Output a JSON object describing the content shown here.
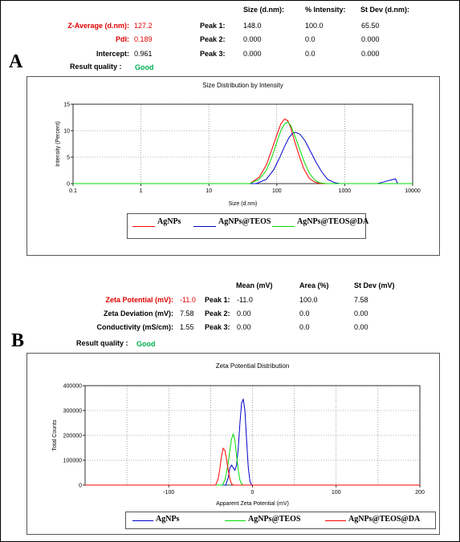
{
  "panels": {
    "a": "A",
    "b": "B"
  },
  "sizeSummary": {
    "headers": {
      "size": "Size (d.nm):",
      "intensity": "% Intensity:",
      "stdev": "St Dev (d.nm):"
    },
    "zavg_label": "Z-Average (d.nm):",
    "zavg_value": "127.2",
    "pdi_label": "PdI:",
    "pdi_value": "0.189",
    "intercept_label": "Intercept:",
    "intercept_value": "0.961",
    "quality_label": "Result quality :",
    "quality_value": "Good",
    "peaks": [
      {
        "label": "Peak 1:",
        "size": "148.0",
        "intensity": "100.0",
        "stdev": "65.50"
      },
      {
        "label": "Peak 2:",
        "size": "0.000",
        "intensity": "0.0",
        "stdev": "0.000"
      },
      {
        "label": "Peak 3:",
        "size": "0.000",
        "intensity": "0.0",
        "stdev": "0.000"
      }
    ]
  },
  "zetaSummary": {
    "headers": {
      "mean": "Mean (mV)",
      "area": "Area (%)",
      "stdev": "St Dev (mV)"
    },
    "zp_label": "Zeta Potential (mV):",
    "zp_value": "-11.0",
    "zd_label": "Zeta Deviation (mV):",
    "zd_value": "7.58",
    "cond_label": "Conductivity (mS/cm):",
    "cond_value": "1.55",
    "quality_label": "Result quality :",
    "quality_value": "Good",
    "peaks": [
      {
        "label": "Peak 1:",
        "mean": "-11.0",
        "area": "100.0",
        "stdev": "7.58"
      },
      {
        "label": "Peak 2:",
        "mean": "0.00",
        "area": "0.0",
        "stdev": "0.00"
      },
      {
        "label": "Peak 3:",
        "mean": "0.00",
        "area": "0.0",
        "stdev": "0.00"
      }
    ]
  },
  "chart_data": [
    {
      "type": "line",
      "title": "Size Distribution by Intensity",
      "xlabel": "Size (d.nm)",
      "ylabel": "Intensity (Percent)",
      "xscale": "log",
      "xlim": [
        0.1,
        10000
      ],
      "ylim": [
        0,
        15
      ],
      "xticks": [
        "0.1",
        "1",
        "10",
        "100",
        "1000",
        "10000"
      ],
      "yticks": [
        "0",
        "5",
        "10",
        "15"
      ],
      "grid": true,
      "legend": "bottom",
      "series": [
        {
          "name": "AgNPs",
          "color": "#ff0000",
          "x": [
            40,
            55,
            70,
            85,
            100,
            115,
            130,
            145,
            160,
            180,
            210,
            250,
            300,
            360,
            430,
            500
          ],
          "y": [
            0,
            1.2,
            3.5,
            6.5,
            9.2,
            11.3,
            12.2,
            11.9,
            10.6,
            8.3,
            5.5,
            2.8,
            1.0,
            0.3,
            0.05,
            0
          ]
        },
        {
          "name": "AgNPs@TEOS",
          "color": "#0000cc",
          "x": [
            50,
            70,
            90,
            110,
            130,
            150,
            170,
            190,
            220,
            260,
            310,
            380,
            460,
            560,
            700,
            850,
            3000,
            3500,
            4200,
            5000,
            5600,
            6000
          ],
          "y": [
            0,
            0.8,
            2.6,
            4.9,
            7.0,
            8.6,
            9.5,
            9.7,
            9.3,
            8.1,
            6.2,
            4.0,
            2.2,
            0.8,
            0.2,
            0,
            0,
            0.2,
            0.5,
            0.75,
            0.9,
            0
          ]
        },
        {
          "name": "AgNPs@TEOS@DA",
          "color": "#00dd00",
          "x": [
            40,
            55,
            70,
            85,
            100,
            115,
            130,
            145,
            160,
            180,
            210,
            250,
            300,
            360,
            430,
            520,
            620
          ],
          "y": [
            0,
            0.8,
            2.5,
            5.0,
            7.8,
            10.0,
            11.3,
            11.6,
            11.0,
            9.4,
            7.0,
            4.3,
            2.0,
            0.7,
            0.15,
            0.02,
            0
          ]
        }
      ]
    },
    {
      "type": "line",
      "title": "Zeta Potential Distribution",
      "xlabel": "Apparent Zeta Potential (mV)",
      "ylabel": "Total Counts",
      "xlim": [
        -200,
        200
      ],
      "ylim": [
        0,
        400000
      ],
      "xticks": [
        "-100",
        "0",
        "100",
        "200"
      ],
      "yticks": [
        "0",
        "100000",
        "200000",
        "300000",
        "400000"
      ],
      "grid": true,
      "legend": "bottom",
      "series": [
        {
          "name": "AgNPs",
          "color": "#0000cc",
          "x": [
            -32,
            -29,
            -27,
            -25,
            -23,
            -21,
            -19,
            -17,
            -15,
            -13,
            -11,
            -9,
            -7,
            -5,
            -3,
            -1
          ],
          "y": [
            0,
            30000,
            70000,
            80000,
            70000,
            60000,
            80000,
            150000,
            250000,
            330000,
            345000,
            300000,
            180000,
            70000,
            15000,
            0
          ]
        },
        {
          "name": "AgNPs@TEOS",
          "color": "#00dd00",
          "x": [
            -36,
            -33,
            -31,
            -29,
            -27,
            -25,
            -23,
            -21,
            -19,
            -17,
            -15,
            -13,
            -11
          ],
          "y": [
            0,
            20000,
            50000,
            90000,
            140000,
            185000,
            205000,
            180000,
            120000,
            60000,
            20000,
            5000,
            0
          ]
        },
        {
          "name": "AgNPs@TEOS@DA",
          "color": "#ff0000",
          "x": [
            -44,
            -41,
            -39,
            -37,
            -35,
            -33,
            -31,
            -29,
            -27,
            -25,
            -23
          ],
          "y": [
            0,
            25000,
            65000,
            115000,
            148000,
            140000,
            105000,
            60000,
            25000,
            5000,
            0
          ]
        }
      ]
    }
  ]
}
